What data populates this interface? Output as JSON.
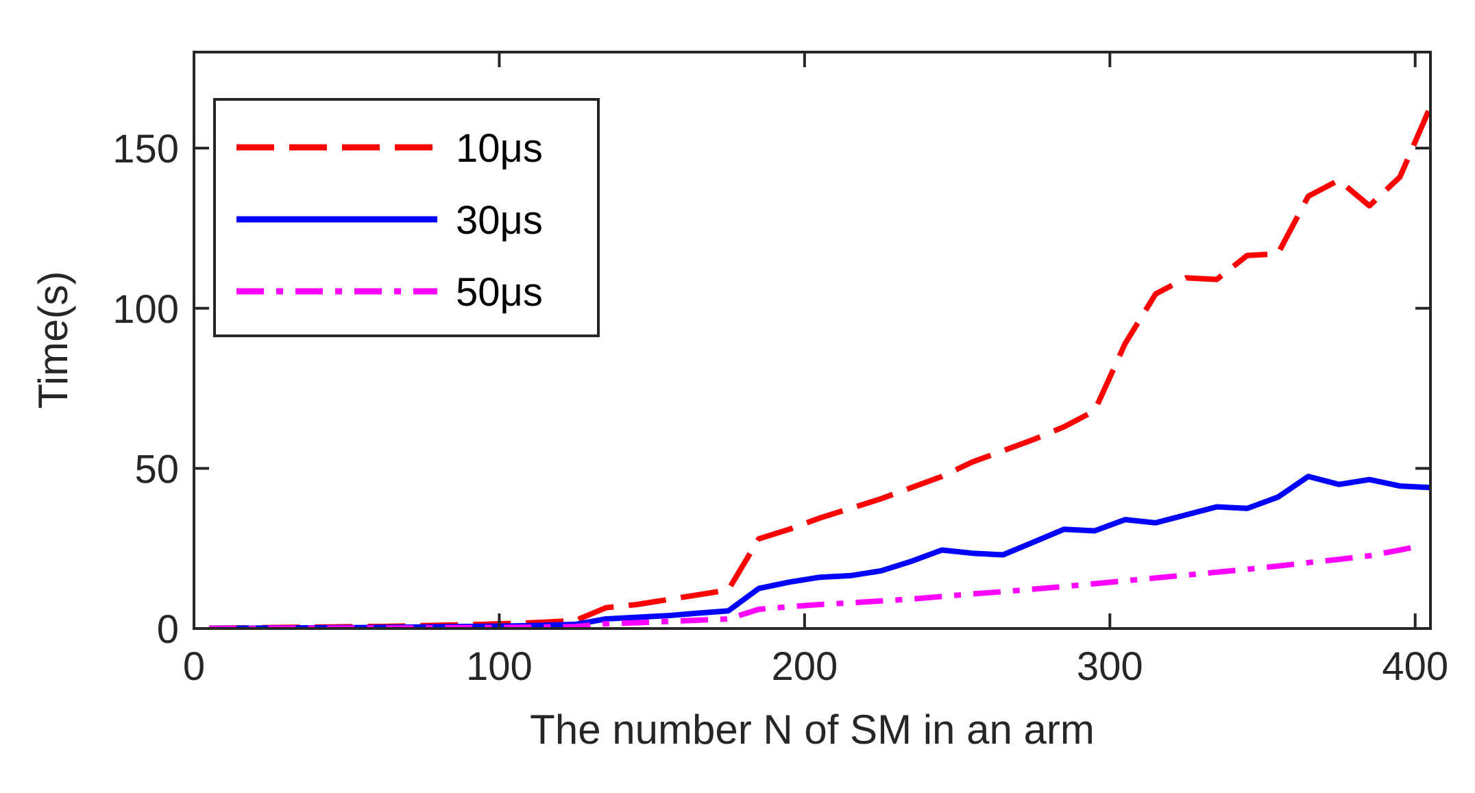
{
  "chart_data": {
    "type": "line",
    "title": "",
    "xlabel": "The number N of SM in an arm",
    "ylabel": "Time(s)",
    "xlim": [
      0,
      405
    ],
    "ylim": [
      0,
      180
    ],
    "xticks": [
      0,
      100,
      200,
      300,
      400
    ],
    "yticks": [
      0,
      50,
      100,
      150
    ],
    "xtick_labels": [
      "0",
      "100",
      "200",
      "300",
      "400"
    ],
    "ytick_labels": [
      "0",
      "50",
      "100",
      "150"
    ],
    "grid": false,
    "legend_position": "top-left",
    "series": [
      {
        "name": "10μs",
        "color": "#ff0000",
        "style": "dashed",
        "x": [
          5,
          15,
          25,
          35,
          45,
          55,
          65,
          75,
          85,
          95,
          105,
          115,
          125,
          135,
          145,
          155,
          165,
          175,
          185,
          195,
          205,
          215,
          225,
          235,
          245,
          255,
          265,
          275,
          285,
          295,
          305,
          315,
          325,
          335,
          345,
          355,
          365,
          375,
          385,
          395,
          405
        ],
        "y": [
          0.1,
          0.2,
          0.3,
          0.4,
          0.5,
          0.6,
          0.7,
          0.9,
          1.1,
          1.3,
          1.6,
          2.0,
          2.5,
          6.5,
          7.5,
          9,
          10.5,
          12,
          28,
          31,
          34.5,
          37.5,
          40.5,
          44,
          47.5,
          52,
          55.5,
          59,
          63,
          68,
          89,
          104.5,
          109.5,
          109,
          116.5,
          117,
          135,
          140,
          132,
          141,
          163
        ]
      },
      {
        "name": "30μs",
        "color": "#0000ff",
        "style": "solid",
        "x": [
          5,
          15,
          25,
          35,
          45,
          55,
          65,
          75,
          85,
          95,
          105,
          115,
          125,
          135,
          145,
          155,
          165,
          175,
          185,
          195,
          205,
          215,
          225,
          235,
          245,
          255,
          265,
          275,
          285,
          295,
          305,
          315,
          325,
          335,
          345,
          355,
          365,
          375,
          385,
          395,
          405
        ],
        "y": [
          0.05,
          0.1,
          0.15,
          0.2,
          0.25,
          0.3,
          0.4,
          0.5,
          0.6,
          0.7,
          0.8,
          1.0,
          1.3,
          3.0,
          3.5,
          4.0,
          4.8,
          5.5,
          12.5,
          14.5,
          16,
          16.5,
          18,
          21,
          24.5,
          23.5,
          23,
          27,
          31,
          30.5,
          34,
          33,
          35.5,
          38,
          37.5,
          41,
          47.5,
          45,
          46.5,
          44.5,
          44
        ]
      },
      {
        "name": "50μs",
        "color": "#ff00ff",
        "style": "dashdot",
        "x": [
          5,
          15,
          25,
          35,
          45,
          55,
          65,
          75,
          85,
          95,
          105,
          115,
          125,
          135,
          145,
          155,
          165,
          175,
          185,
          195,
          205,
          215,
          225,
          235,
          245,
          255,
          265,
          275,
          285,
          295,
          305,
          315,
          325,
          335,
          345,
          355,
          365,
          375,
          385,
          395,
          400
        ],
        "y": [
          0.02,
          0.05,
          0.08,
          0.1,
          0.12,
          0.15,
          0.18,
          0.2,
          0.25,
          0.3,
          0.35,
          0.45,
          0.6,
          1.5,
          1.8,
          2.2,
          2.6,
          3.0,
          6.0,
          6.8,
          7.5,
          8.0,
          8.6,
          9.2,
          10.0,
          10.8,
          11.5,
          12.3,
          13.1,
          14.0,
          14.9,
          15.8,
          16.7,
          17.6,
          18.5,
          19.5,
          20.6,
          21.6,
          22.7,
          24.5,
          25.5
        ]
      }
    ]
  }
}
